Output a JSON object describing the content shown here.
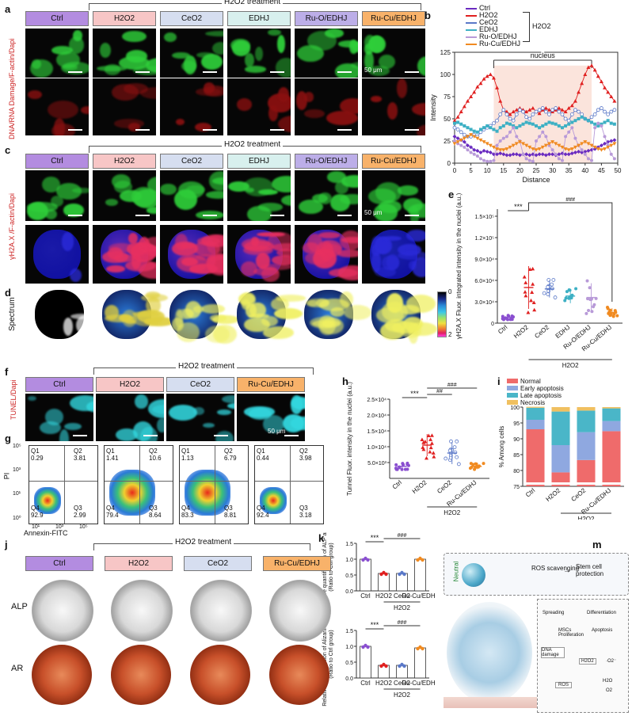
{
  "panels": [
    "a",
    "b",
    "c",
    "d",
    "e",
    "f",
    "g",
    "h",
    "i",
    "j",
    "k",
    "l",
    "m"
  ],
  "groups6": [
    "Ctrl",
    "H2O2",
    "CeO2",
    "EDHJ",
    "Ru-O/EDHJ",
    "Ru-Cu/EDHJ"
  ],
  "groups4": [
    "Ctrl",
    "H2O2",
    "CeO2",
    "Ru-Cu/EDHJ"
  ],
  "group_colors": {
    "Ctrl": "#b38ce0",
    "H2O2": "#f7c6c6",
    "CeO2": "#d6def0",
    "EDHJ": "#d8f0ee",
    "Ru-O/EDHJ": "#bcaee8",
    "Ru-Cu/EDHJ": "#f8b26a"
  },
  "treatment_label": "H2O2 treatment",
  "h2o2_label": "H2O2",
  "scale_label": "50 μm",
  "panel_a": {
    "ylabel": "DNA/RNA Damage/F-actin/Dapi"
  },
  "panel_c": {
    "ylabel": "γH2A.X /F-actin/Dapi"
  },
  "panel_d": {
    "ylabel": "Spectrum",
    "colorbar_top": "0",
    "colorbar_bottom": "2"
  },
  "panel_f": {
    "ylabel": "TUNEL/Dapi"
  },
  "panel_g": {
    "ylabel": "PI",
    "xlabel": "Annexin-FITC",
    "yticks": [
      "10⁵",
      "10³",
      "10¹",
      "10⁰"
    ],
    "xticks": [
      "10¹",
      "10³",
      "10⁵"
    ],
    "quadrants": [
      {
        "q1": "0.29",
        "q2": "3.81",
        "q3": "2.99",
        "q4": "92.9"
      },
      {
        "q1": "1.41",
        "q2": "10.6",
        "q3": "8.64",
        "q4": "79.4"
      },
      {
        "q1": "1.13",
        "q2": "6.79",
        "q3": "8.81",
        "q4": "83.3"
      },
      {
        "q1": "0.44",
        "q2": "3.98",
        "q3": "3.18",
        "q4": "92.4"
      }
    ]
  },
  "panel_j": {
    "row1": "ALP",
    "row2": "AR"
  },
  "panel_m": {
    "neutral": "Neutral",
    "ros_scavenging": "ROS scavenging",
    "stem_cell": "Stem cell protection",
    "spreading": "Spreading",
    "differentiation": "Differentiation",
    "apoptosis": "Apoptosis",
    "mscs": "MSCs Proliferation",
    "dna": "DNA damage",
    "ros": "ROS",
    "h2o2": "H2O2",
    "o2m": "·O2⁻",
    "h2o": "H2O",
    "o2": "O2"
  },
  "chart_data": [
    {
      "panel": "b",
      "type": "line",
      "xlabel": "Distance",
      "ylabel": "Intensity",
      "xlim": [
        0,
        50
      ],
      "ylim": [
        0,
        125
      ],
      "xticks": [
        0,
        5,
        10,
        15,
        20,
        25,
        30,
        35,
        40,
        45,
        50
      ],
      "yticks": [
        0,
        25,
        50,
        75,
        100,
        125
      ],
      "annotation": "nucleus",
      "legend_group_label": "H2O2",
      "x": [
        0,
        1,
        2,
        3,
        4,
        5,
        6,
        7,
        8,
        9,
        10,
        11,
        12,
        13,
        14,
        15,
        16,
        17,
        18,
        19,
        20,
        21,
        22,
        23,
        24,
        25,
        26,
        27,
        28,
        29,
        30,
        31,
        32,
        33,
        34,
        35,
        36,
        37,
        38,
        39,
        40,
        41,
        42,
        43,
        44,
        45,
        46,
        47,
        48,
        49
      ],
      "series": [
        {
          "name": "Ctrl",
          "color": "#6a2bc0",
          "marker": "diamond",
          "values": [
            30,
            28,
            26,
            24,
            20,
            18,
            15,
            14,
            12,
            14,
            13,
            12,
            10,
            10,
            11,
            10,
            9,
            9,
            10,
            10,
            9,
            10,
            10,
            9,
            10,
            9,
            10,
            10,
            9,
            10,
            10,
            9,
            10,
            11,
            10,
            10,
            11,
            12,
            13,
            12,
            13,
            14,
            15,
            16,
            18,
            20,
            22,
            24,
            25,
            26
          ]
        },
        {
          "name": "H2O2",
          "color": "#e02020",
          "marker": "triangle",
          "values": [
            48,
            52,
            58,
            64,
            70,
            75,
            80,
            86,
            90,
            95,
            98,
            100,
            96,
            85,
            70,
            60,
            58,
            55,
            58,
            60,
            62,
            60,
            58,
            60,
            62,
            58,
            56,
            60,
            62,
            60,
            58,
            60,
            62,
            60,
            58,
            62,
            65,
            70,
            80,
            90,
            100,
            108,
            110,
            105,
            98,
            92,
            85,
            80,
            75,
            70
          ]
        },
        {
          "name": "CeO2",
          "color": "#5a78c8",
          "marker": "circle-open",
          "values": [
            40,
            38,
            35,
            32,
            30,
            30,
            32,
            30,
            35,
            38,
            40,
            42,
            45,
            48,
            55,
            60,
            55,
            50,
            48,
            55,
            60,
            58,
            52,
            50,
            55,
            58,
            60,
            62,
            58,
            55,
            60,
            62,
            58,
            55,
            50,
            48,
            55,
            60,
            58,
            55,
            50,
            48,
            52,
            55,
            60,
            62,
            58,
            55,
            58,
            60
          ]
        },
        {
          "name": "EDHJ",
          "color": "#3db0c4",
          "marker": "square",
          "values": [
            45,
            46,
            44,
            42,
            40,
            38,
            36,
            35,
            38,
            40,
            42,
            40,
            38,
            36,
            40,
            42,
            45,
            44,
            42,
            40,
            42,
            44,
            46,
            45,
            44,
            42,
            40,
            42,
            44,
            46,
            45,
            44,
            42,
            40,
            42,
            44,
            46,
            48,
            50,
            52,
            50,
            48,
            46,
            44,
            42,
            44,
            46,
            48,
            45,
            44
          ]
        },
        {
          "name": "Ru-O/EDHJ",
          "color": "#b89ad8",
          "marker": "circle",
          "values": [
            25,
            22,
            20,
            18,
            15,
            12,
            10,
            8,
            5,
            3,
            2,
            2,
            3,
            20,
            25,
            28,
            30,
            35,
            40,
            30,
            25,
            10,
            5,
            3,
            2,
            25,
            30,
            35,
            30,
            20,
            15,
            10,
            5,
            3,
            30,
            35,
            40,
            28,
            20,
            15,
            10,
            5,
            3,
            40,
            45,
            42,
            30,
            20,
            10,
            5
          ]
        },
        {
          "name": "Ru-Cu/EDHJ",
          "color": "#f08a20",
          "marker": "triangle-down",
          "values": [
            22,
            24,
            26,
            28,
            30,
            32,
            30,
            28,
            26,
            24,
            22,
            20,
            18,
            16,
            15,
            15,
            16,
            18,
            20,
            22,
            24,
            22,
            20,
            18,
            16,
            15,
            16,
            18,
            20,
            22,
            24,
            22,
            20,
            18,
            16,
            15,
            16,
            18,
            20,
            22,
            24,
            22,
            20,
            18,
            16,
            15,
            16,
            18,
            20,
            22
          ]
        }
      ]
    },
    {
      "panel": "e",
      "type": "scatter",
      "ylabel": "γH2A.X Fluor. integrated intensity in the nuclei (a.u.)",
      "ylim": [
        0,
        160000
      ],
      "yticks": [
        "0",
        "3.0×10⁴",
        "6.0×10⁴",
        "9.0×10⁴",
        "1.2×10⁵",
        "1.5×10⁵"
      ],
      "categories": [
        "Ctrl",
        "H2O2",
        "CeO2",
        "EDHJ",
        "Ru-O/EDHJ",
        "Ru-Cu/EDHJ"
      ],
      "means": [
        8000,
        50000,
        48000,
        38000,
        36000,
        15000
      ],
      "sds": [
        3000,
        30000,
        12000,
        10000,
        20000,
        6000
      ],
      "colors": [
        "#8a4fd0",
        "#e02020",
        "#5a78c8",
        "#3db0c4",
        "#b89ad8",
        "#f08a20"
      ],
      "sig": [
        "***",
        "###"
      ],
      "group_label": "H2O2"
    },
    {
      "panel": "h",
      "type": "scatter",
      "ylabel": "Tunnel Fluor. intensity in the nuclei (a.u.)",
      "ylim": [
        0,
        25000
      ],
      "yticks": [
        "5.0×10³",
        "1.0×10⁴",
        "1.5×10⁴",
        "2.0×10⁴",
        "2.5×10⁴"
      ],
      "categories": [
        "Ctrl",
        "H2O2",
        "CeO2",
        "Ru-Cu/EDHJ"
      ],
      "means": [
        3800,
        10500,
        8000,
        3800
      ],
      "sds": [
        1000,
        3500,
        3500,
        900
      ],
      "colors": [
        "#8a4fd0",
        "#e02020",
        "#5a78c8",
        "#f08a20"
      ],
      "sig": [
        "***",
        "##",
        "###"
      ],
      "group_label": "H2O2"
    },
    {
      "panel": "i",
      "type": "bar",
      "ylabel": "% Among cells",
      "ylim": [
        75,
        100
      ],
      "yticks": [
        75,
        80,
        85,
        90,
        95,
        100
      ],
      "categories": [
        "Ctrl",
        "H2O2",
        "CeO2",
        "Ru-Cu/EDHJ"
      ],
      "series": [
        {
          "name": "Normal",
          "color": "#ef6b6b",
          "values": [
            93,
            79.4,
            83.3,
            92.4
          ]
        },
        {
          "name": "Early apoptosis",
          "color": "#8fa8e0",
          "values": [
            3,
            8.6,
            8.8,
            3.2
          ]
        },
        {
          "name": "Late apoptosis",
          "color": "#4ab6c8",
          "values": [
            3.8,
            10.6,
            6.8,
            4
          ]
        },
        {
          "name": "Necrosis",
          "color": "#f0c060",
          "values": [
            0.3,
            1.4,
            1.1,
            0.4
          ]
        }
      ],
      "group_label": "H2O2"
    },
    {
      "panel": "k",
      "type": "bar",
      "ylabel": "Relative quantification of ALP area (Ratio to Ctrl group)",
      "ylim": [
        0,
        1.5
      ],
      "yticks": [
        "0.0",
        "0.5",
        "1.0",
        "1.5"
      ],
      "categories": [
        "Ctrl",
        "H2O2",
        "CeO2",
        "Ru-Cu/EDHJ"
      ],
      "values": [
        1.0,
        0.55,
        0.55,
        1.0
      ],
      "colors": [
        "#8a4fd0",
        "#e02020",
        "#5a78c8",
        "#f08a20"
      ],
      "sig": [
        "***",
        "###"
      ],
      "group_label": "H2O2"
    },
    {
      "panel": "l",
      "type": "bar",
      "ylabel": "Relative quantification of Alizarin Red area (Ratio to Ctrl group)",
      "ylim": [
        0,
        1.5
      ],
      "yticks": [
        "0.0",
        "0.5",
        "1.0",
        "1.5"
      ],
      "categories": [
        "Ctrl",
        "H2O2",
        "CeO2",
        "Ru-Cu/EDHJ"
      ],
      "values": [
        1.0,
        0.4,
        0.4,
        0.95
      ],
      "colors": [
        "#8a4fd0",
        "#e02020",
        "#5a78c8",
        "#f08a20"
      ],
      "sig": [
        "***",
        "###"
      ],
      "group_label": "H2O2"
    }
  ]
}
